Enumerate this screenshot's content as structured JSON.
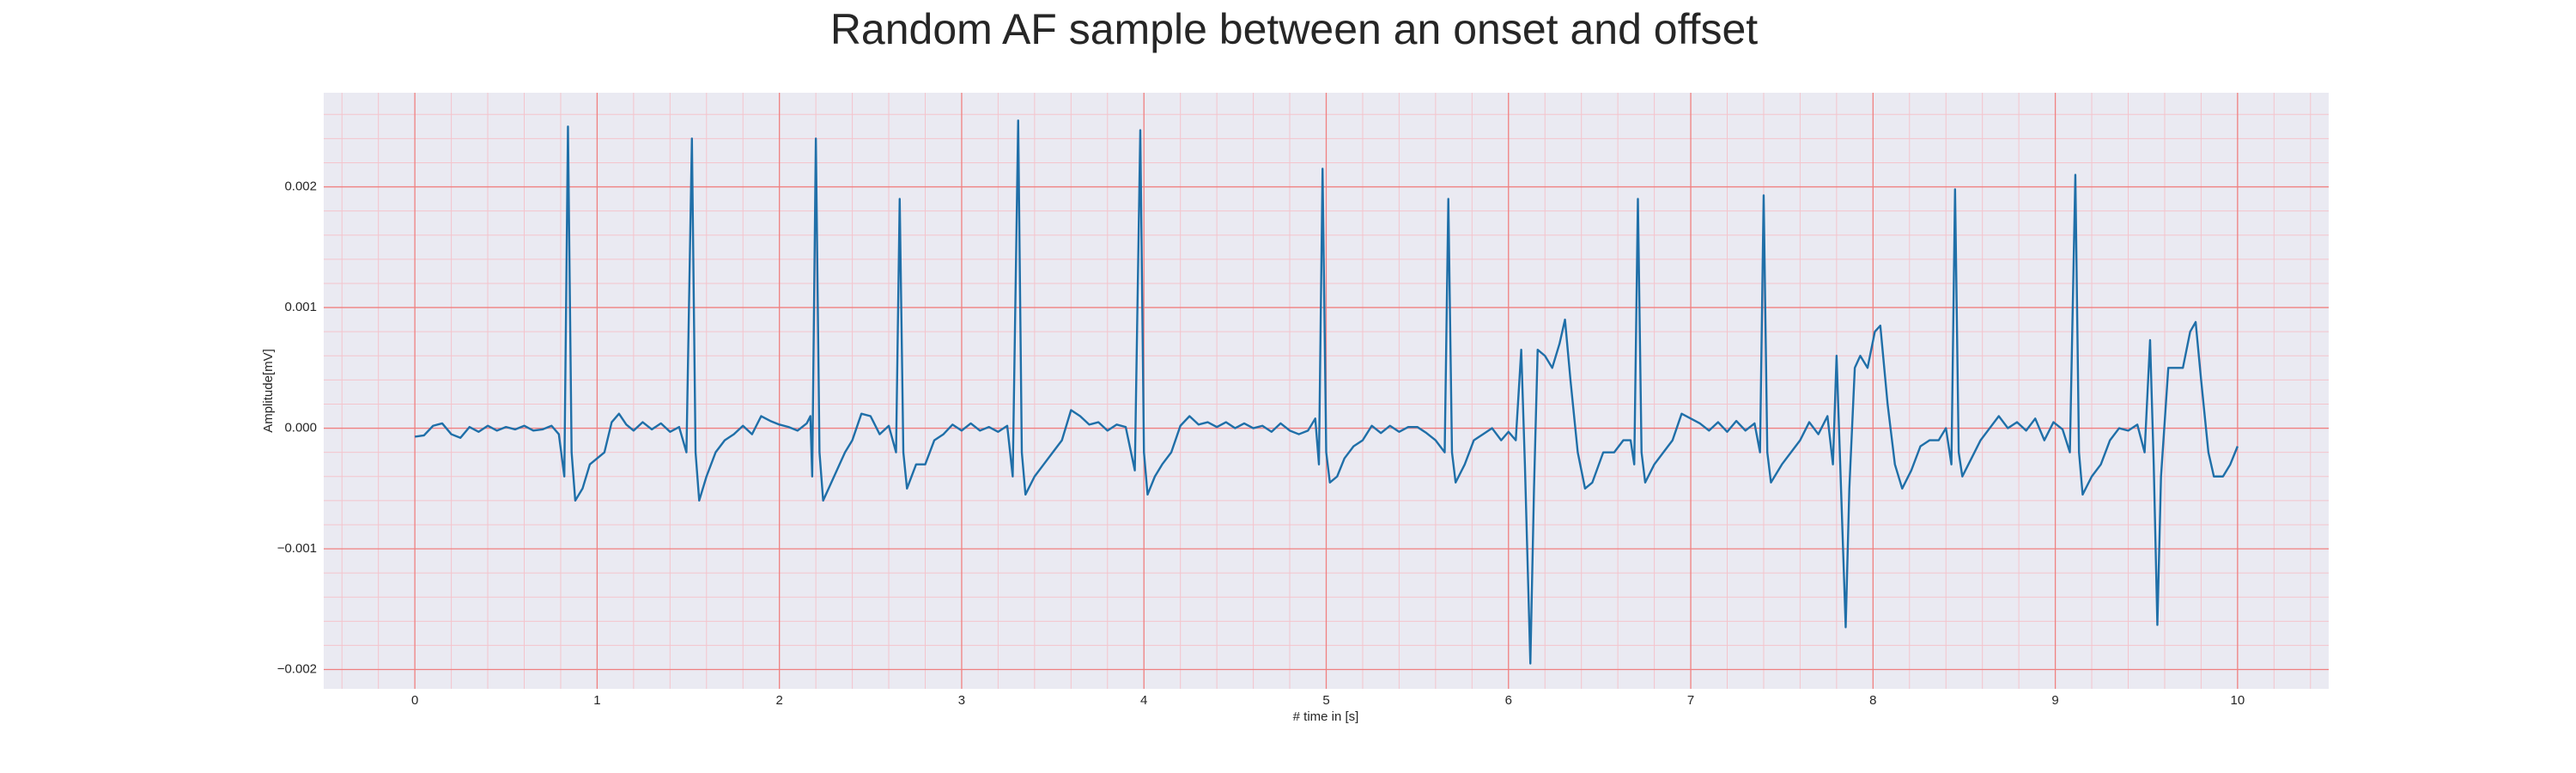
{
  "chart_data": {
    "type": "line",
    "title": "Random AF sample between an onset and offset",
    "xlabel": "# time in [s]",
    "ylabel": "Amplitude[mV]",
    "color": "#1f6fa8",
    "background": "#eaeaf2",
    "grid": true,
    "grid_color": "#f08080",
    "minor_grid": true,
    "minor_grid_color": "#f4c4cc",
    "xlim": [
      -0.5,
      10.5
    ],
    "ylim": [
      -0.00216,
      0.00278
    ],
    "xticks": [
      0,
      1,
      2,
      3,
      4,
      5,
      6,
      7,
      8,
      9,
      10
    ],
    "yticks": [
      {
        "value": -0.002,
        "label": "−0.002"
      },
      {
        "value": -0.001,
        "label": "−0.001"
      },
      {
        "value": 0,
        "label": "0.000"
      },
      0.001,
      0.002
    ],
    "xminorticks": [
      -0.4,
      -0.2,
      0.2,
      0.4,
      0.6,
      0.8,
      1.2,
      1.4,
      1.6,
      1.8,
      2.2,
      2.4,
      2.6,
      2.8,
      3.2,
      3.4,
      3.6,
      3.8,
      4.2,
      4.4,
      4.6,
      4.8,
      5.2,
      5.4,
      5.6,
      5.8,
      6.2,
      6.4,
      6.6,
      6.8,
      7.2,
      7.4,
      7.6,
      7.8,
      8.2,
      8.4,
      8.6,
      8.8,
      9.2,
      9.4,
      9.6,
      9.8,
      10.2,
      10.4
    ],
    "yminorticks": [
      -0.0018,
      -0.0016,
      -0.0014,
      -0.0012,
      -0.0008,
      -0.0006,
      -0.0004,
      -0.0002,
      0.0002,
      0.0004,
      0.0006,
      0.0008,
      0.0012,
      0.0014,
      0.0016,
      0.0018,
      0.0022,
      0.0024,
      0.0026
    ],
    "x": [
      0.0,
      0.05,
      0.1,
      0.15,
      0.2,
      0.25,
      0.3,
      0.35,
      0.4,
      0.45,
      0.5,
      0.55,
      0.6,
      0.65,
      0.7,
      0.75,
      0.79,
      0.82,
      0.84,
      0.86,
      0.88,
      0.92,
      0.96,
      1.0,
      1.04,
      1.08,
      1.12,
      1.16,
      1.2,
      1.25,
      1.3,
      1.35,
      1.4,
      1.45,
      1.49,
      1.52,
      1.54,
      1.56,
      1.6,
      1.65,
      1.7,
      1.75,
      1.8,
      1.85,
      1.9,
      1.95,
      2.0,
      2.05,
      2.1,
      2.15,
      2.17,
      2.18,
      2.2,
      2.22,
      2.24,
      2.3,
      2.36,
      2.4,
      2.45,
      2.5,
      2.55,
      2.6,
      2.64,
      2.66,
      2.68,
      2.7,
      2.75,
      2.8,
      2.85,
      2.9,
      2.95,
      3.0,
      3.05,
      3.1,
      3.15,
      3.2,
      3.25,
      3.28,
      3.31,
      3.33,
      3.35,
      3.4,
      3.45,
      3.5,
      3.55,
      3.6,
      3.65,
      3.7,
      3.75,
      3.8,
      3.85,
      3.9,
      3.95,
      3.98,
      4.0,
      4.02,
      4.06,
      4.1,
      4.15,
      4.2,
      4.25,
      4.3,
      4.35,
      4.4,
      4.45,
      4.5,
      4.55,
      4.6,
      4.65,
      4.7,
      4.75,
      4.8,
      4.85,
      4.9,
      4.94,
      4.96,
      4.98,
      5.0,
      5.02,
      5.06,
      5.1,
      5.15,
      5.2,
      5.25,
      5.3,
      5.35,
      5.4,
      5.45,
      5.5,
      5.55,
      5.6,
      5.65,
      5.67,
      5.69,
      5.71,
      5.76,
      5.81,
      5.86,
      5.91,
      5.96,
      6.0,
      6.04,
      6.07,
      6.09,
      6.12,
      6.14,
      6.16,
      6.2,
      6.24,
      6.28,
      6.31,
      6.34,
      6.38,
      6.42,
      6.46,
      6.52,
      6.58,
      6.63,
      6.67,
      6.69,
      6.71,
      6.73,
      6.75,
      6.8,
      6.85,
      6.9,
      6.95,
      7.0,
      7.05,
      7.1,
      7.15,
      7.2,
      7.25,
      7.3,
      7.35,
      7.38,
      7.4,
      7.42,
      7.44,
      7.5,
      7.55,
      7.6,
      7.65,
      7.7,
      7.75,
      7.78,
      7.8,
      7.82,
      7.85,
      7.87,
      7.9,
      7.93,
      7.97,
      8.01,
      8.04,
      8.08,
      8.12,
      8.16,
      8.21,
      8.26,
      8.31,
      8.36,
      8.4,
      8.43,
      8.45,
      8.47,
      8.49,
      8.54,
      8.59,
      8.64,
      8.69,
      8.74,
      8.79,
      8.84,
      8.89,
      8.94,
      8.99,
      9.04,
      9.08,
      9.11,
      9.13,
      9.15,
      9.2,
      9.25,
      9.3,
      9.35,
      9.4,
      9.45,
      9.49,
      9.52,
      9.54,
      9.56,
      9.58,
      9.62,
      9.66,
      9.7,
      9.74,
      9.77,
      9.8,
      9.84,
      9.87,
      9.92,
      9.96,
      10.0
    ],
    "values": [
      -7e-05,
      -6e-05,
      2e-05,
      4e-05,
      -5e-05,
      -8e-05,
      1e-05,
      -3e-05,
      2e-05,
      -2e-05,
      1e-05,
      -1e-05,
      2e-05,
      -2e-05,
      -1e-05,
      2e-05,
      -5e-05,
      -0.0004,
      0.0025,
      -0.0002,
      -0.0006,
      -0.0005,
      -0.0003,
      -0.00025,
      -0.0002,
      5e-05,
      0.00012,
      3e-05,
      -2e-05,
      5e-05,
      -1e-05,
      4e-05,
      -3e-05,
      1e-05,
      -0.0002,
      0.0024,
      -0.0002,
      -0.0006,
      -0.0004,
      -0.0002,
      -0.0001,
      -5e-05,
      2e-05,
      -5e-05,
      0.0001,
      6e-05,
      3e-05,
      1e-05,
      -2e-05,
      4e-05,
      0.0001,
      -0.0004,
      0.0024,
      -0.0002,
      -0.0006,
      -0.0004,
      -0.0002,
      -0.0001,
      0.00012,
      0.0001,
      -5e-05,
      2e-05,
      -0.0002,
      0.0019,
      -0.0002,
      -0.0005,
      -0.0003,
      -0.0003,
      -0.0001,
      -5e-05,
      3e-05,
      -2e-05,
      4e-05,
      -2e-05,
      1e-05,
      -3e-05,
      2e-05,
      -0.0004,
      0.00255,
      -0.0002,
      -0.00055,
      -0.0004,
      -0.0003,
      -0.0002,
      -0.0001,
      0.00015,
      0.0001,
      3e-05,
      5e-05,
      -2e-05,
      3e-05,
      1e-05,
      -0.00035,
      0.00247,
      -0.0002,
      -0.00055,
      -0.0004,
      -0.0003,
      -0.0002,
      2e-05,
      0.0001,
      3e-05,
      5e-05,
      1e-05,
      5e-05,
      0.0,
      4e-05,
      0.0,
      2e-05,
      -3e-05,
      4e-05,
      -2e-05,
      -5e-05,
      -2e-05,
      8e-05,
      -0.0003,
      0.00215,
      -0.0002,
      -0.00045,
      -0.0004,
      -0.00025,
      -0.00015,
      -0.0001,
      2e-05,
      -4e-05,
      2e-05,
      -3e-05,
      1e-05,
      1e-05,
      -4e-05,
      -0.0001,
      -0.0002,
      0.0019,
      -0.0002,
      -0.00045,
      -0.0003,
      -0.0001,
      -5e-05,
      0.0,
      -0.0001,
      -3e-05,
      -0.0001,
      0.00065,
      -0.0003,
      -0.00195,
      -0.0005,
      0.00065,
      0.0006,
      0.0005,
      0.0007,
      0.0009,
      0.0004,
      -0.0002,
      -0.0005,
      -0.00045,
      -0.0002,
      -0.0002,
      -0.0001,
      -0.0001,
      -0.0003,
      0.0019,
      -0.0002,
      -0.00045,
      -0.0003,
      -0.0002,
      -0.0001,
      0.00012,
      8e-05,
      4e-05,
      -2e-05,
      5e-05,
      -3e-05,
      6e-05,
      -2e-05,
      4e-05,
      -0.0002,
      0.00193,
      -0.0002,
      -0.00045,
      -0.0003,
      -0.0002,
      -0.0001,
      5e-05,
      -5e-05,
      0.0001,
      -0.0003,
      0.0006,
      -0.0003,
      -0.00165,
      -0.0005,
      0.0005,
      0.0006,
      0.0005,
      0.0008,
      0.00085,
      0.0002,
      -0.0003,
      -0.0005,
      -0.00035,
      -0.00015,
      -0.0001,
      -0.0001,
      0.0,
      -0.0003,
      0.00198,
      -0.0002,
      -0.0004,
      -0.00025,
      -0.0001,
      0.0,
      0.0001,
      0.0,
      5e-05,
      -2e-05,
      8e-05,
      -0.0001,
      5e-05,
      -1e-05,
      -0.0002,
      0.0021,
      -0.0002,
      -0.00055,
      -0.0004,
      -0.0003,
      -0.0001,
      0.0,
      -2e-05,
      3e-05,
      -0.0002,
      0.00073,
      -0.0003,
      -0.00163,
      -0.0004,
      0.0005,
      0.0005,
      0.0005,
      0.0008,
      0.00088,
      0.0004,
      -0.0002,
      -0.0004,
      -0.0004,
      -0.0003,
      -0.00015
    ]
  }
}
